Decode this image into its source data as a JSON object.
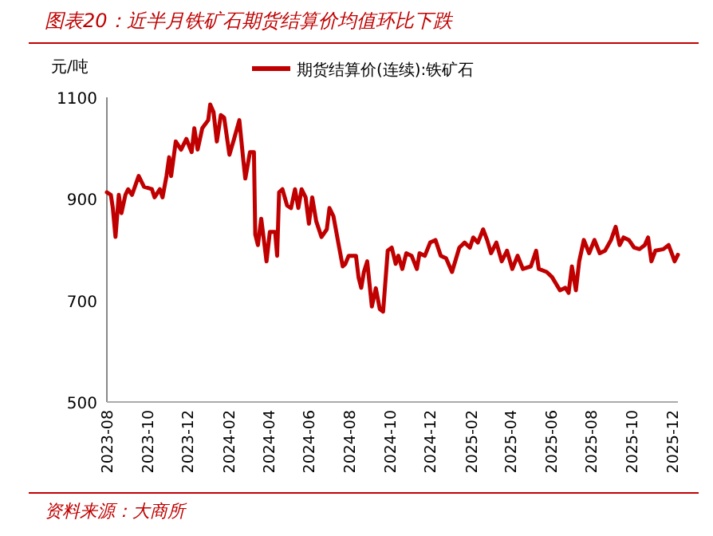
{
  "chart_data": {
    "type": "line",
    "title": "图表20：近半月铁矿石期货结算价均值环比下跌",
    "ylabel": "元/吨",
    "annotations": [
      "资料来源：大商所"
    ],
    "legend": "top",
    "grid": false,
    "marker": "none",
    "line_style": "solid",
    "ylim": [
      500,
      1100
    ],
    "yticks": [
      500,
      700,
      900,
      1100
    ],
    "xlim": [
      "2023-08-01",
      "2025-12-10"
    ],
    "xticks": [
      {
        "value": "2023-08-01",
        "label": "2023-08"
      },
      {
        "value": "2023-10-01",
        "label": "2023-10"
      },
      {
        "value": "2023-12-01",
        "label": "2023-12"
      },
      {
        "value": "2024-02-01",
        "label": "2024-02"
      },
      {
        "value": "2024-04-01",
        "label": "2024-04"
      },
      {
        "value": "2024-06-01",
        "label": "2024-06"
      },
      {
        "value": "2024-08-01",
        "label": "2024-08"
      },
      {
        "value": "2024-10-01",
        "label": "2024-10"
      },
      {
        "value": "2024-12-01",
        "label": "2024-12"
      },
      {
        "value": "2025-02-01",
        "label": "2025-02"
      },
      {
        "value": "2025-04-01",
        "label": "2025-04"
      },
      {
        "value": "2025-06-01",
        "label": "2025-06"
      },
      {
        "value": "2025-08-01",
        "label": "2025-08"
      },
      {
        "value": "2025-10-01",
        "label": "2025-10"
      },
      {
        "value": "2025-12-01",
        "label": "2025-12"
      }
    ],
    "series": [
      {
        "name": "期货结算价(连续):铁矿石",
        "color": "#c00000",
        "x": [
          "2023-08-01",
          "2023-08-07",
          "2023-08-10",
          "2023-08-14",
          "2023-08-19",
          "2023-08-23",
          "2023-08-29",
          "2023-09-02",
          "2023-09-08",
          "2023-09-18",
          "2023-09-26",
          "2023-10-08",
          "2023-10-12",
          "2023-10-20",
          "2023-10-24",
          "2023-10-30",
          "2023-11-03",
          "2023-11-06",
          "2023-11-13",
          "2023-11-21",
          "2023-11-29",
          "2023-12-07",
          "2023-12-11",
          "2023-12-16",
          "2023-12-23",
          "2024-01-01",
          "2024-01-04",
          "2024-01-09",
          "2024-01-14",
          "2024-01-20",
          "2024-01-25",
          "2024-02-02",
          "2024-02-09",
          "2024-02-17",
          "2024-02-23",
          "2024-02-26",
          "2024-03-04",
          "2024-03-10",
          "2024-03-12",
          "2024-03-16",
          "2024-03-21",
          "2024-03-26",
          "2024-03-29",
          "2024-04-03",
          "2024-04-11",
          "2024-04-14",
          "2024-04-17",
          "2024-04-22",
          "2024-04-29",
          "2024-05-05",
          "2024-05-11",
          "2024-05-16",
          "2024-05-21",
          "2024-05-27",
          "2024-06-01",
          "2024-06-06",
          "2024-06-12",
          "2024-06-20",
          "2024-06-28",
          "2024-07-02",
          "2024-07-08",
          "2024-07-16",
          "2024-07-22",
          "2024-07-26",
          "2024-07-31",
          "2024-08-11",
          "2024-08-15",
          "2024-08-19",
          "2024-08-23",
          "2024-08-28",
          "2024-09-04",
          "2024-09-10",
          "2024-09-16",
          "2024-09-21",
          "2024-09-28",
          "2024-10-04",
          "2024-10-10",
          "2024-10-14",
          "2024-10-20",
          "2024-10-26",
          "2024-11-03",
          "2024-11-11",
          "2024-11-15",
          "2024-11-23",
          "2024-12-01",
          "2024-12-09",
          "2024-12-17",
          "2024-12-25",
          "2025-01-03",
          "2025-01-14",
          "2025-01-22",
          "2025-01-30",
          "2025-02-04",
          "2025-02-11",
          "2025-02-19",
          "2025-02-25",
          "2025-03-03",
          "2025-03-11",
          "2025-03-19",
          "2025-03-27",
          "2025-04-04",
          "2025-04-12",
          "2025-04-20",
          "2025-05-02",
          "2025-05-10",
          "2025-05-14",
          "2025-05-26",
          "2025-06-03",
          "2025-06-15",
          "2025-06-23",
          "2025-06-28",
          "2025-07-03",
          "2025-07-09",
          "2025-07-14",
          "2025-07-21",
          "2025-07-29",
          "2025-08-06",
          "2025-08-14",
          "2025-08-22",
          "2025-08-31",
          "2025-09-07",
          "2025-09-13",
          "2025-09-19",
          "2025-09-27",
          "2025-10-05",
          "2025-10-13",
          "2025-10-21",
          "2025-10-26",
          "2025-10-31",
          "2025-11-06",
          "2025-11-18",
          "2025-11-26",
          "2025-12-02",
          "2025-12-05",
          "2025-12-10"
        ],
        "values": [
          913,
          908,
          882,
          825,
          908,
          872,
          908,
          919,
          908,
          945,
          924,
          919,
          903,
          919,
          903,
          945,
          982,
          945,
          1013,
          997,
          1018,
          992,
          1039,
          997,
          1039,
          1055,
          1086,
          1071,
          1013,
          1065,
          1060,
          987,
          1018,
          1055,
          976,
          940,
          992,
          992,
          830,
          809,
          861,
          809,
          777,
          835,
          835,
          788,
          913,
          919,
          887,
          882,
          919,
          882,
          919,
          903,
          851,
          903,
          856,
          825,
          840,
          882,
          866,
          809,
          767,
          772,
          788,
          788,
          745,
          725,
          756,
          777,
          688,
          724,
          683,
          678,
          798,
          804,
          772,
          788,
          762,
          793,
          788,
          762,
          793,
          788,
          814,
          819,
          788,
          783,
          756,
          804,
          814,
          804,
          824,
          814,
          840,
          819,
          793,
          814,
          777,
          798,
          762,
          788,
          762,
          767,
          798,
          762,
          756,
          746,
          720,
          725,
          715,
          767,
          720,
          777,
          819,
          793,
          819,
          793,
          798,
          819,
          845,
          809,
          824,
          819,
          804,
          801,
          809,
          824,
          777,
          798,
          801,
          809,
          788,
          777,
          790
        ]
      }
    ]
  }
}
